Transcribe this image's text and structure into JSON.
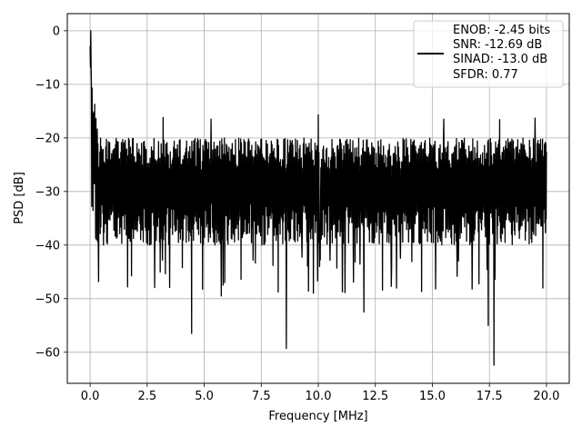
{
  "chart_data": {
    "type": "line",
    "xlabel": "Frequency [MHz]",
    "ylabel": "PSD [dB]",
    "xlim": [
      -1.0,
      21.0
    ],
    "ylim": [
      -65.8,
      3.2
    ],
    "x_ticks": [
      0.0,
      2.5,
      5.0,
      7.5,
      10.0,
      12.5,
      15.0,
      17.5,
      20.0
    ],
    "x_tick_labels": [
      "0.0",
      "2.5",
      "5.0",
      "7.5",
      "10.0",
      "12.5",
      "15.0",
      "17.5",
      "20.0"
    ],
    "y_ticks": [
      0,
      -10,
      -20,
      -30,
      -40,
      -50,
      -60
    ],
    "y_tick_labels": [
      "0",
      "−10",
      "−20",
      "−30",
      "−40",
      "−50",
      "−60"
    ],
    "grid": true,
    "legend_position": "top-right",
    "legend_lines": [
      "ENOB: -2.45 bits",
      "SNR: -12.69 dB",
      "SINAD: -13.0 dB",
      "SFDR: 0.77"
    ],
    "series": [
      {
        "color": "#000000",
        "peak": {
          "x": 0.03,
          "y": 0.0
        },
        "notable_dips": [
          {
            "x": 4.45,
            "y": -56.5
          },
          {
            "x": 8.6,
            "y": -59.3
          },
          {
            "x": 10.0,
            "y": -53.2
          },
          {
            "x": 17.45,
            "y": -55.0
          },
          {
            "x": 17.7,
            "y": -62.4
          },
          {
            "x": 5.75,
            "y": -49.5
          },
          {
            "x": 12.0,
            "y": -52.5
          }
        ],
        "notable_spikes": [
          {
            "x": 10.0,
            "y": -15.7
          },
          {
            "x": 15.5,
            "y": -16.5
          },
          {
            "x": 17.95,
            "y": -16.6
          },
          {
            "x": 19.5,
            "y": -16.3
          },
          {
            "x": 3.2,
            "y": -16.2
          },
          {
            "x": 5.3,
            "y": -16.5
          }
        ],
        "typical_range": [
          -38.0,
          -20.0
        ]
      }
    ]
  }
}
